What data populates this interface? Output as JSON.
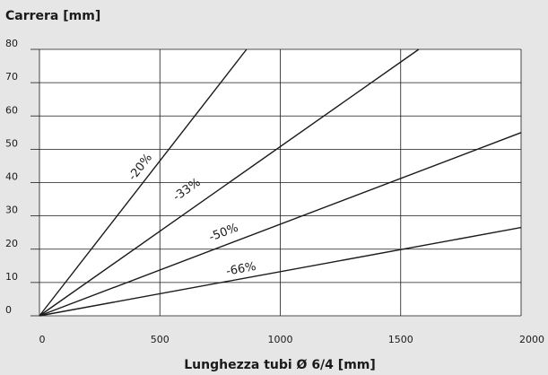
{
  "chart_data": {
    "type": "line",
    "title": "",
    "ylabel": "Carrera [mm]",
    "xlabel": "Lunghezza tubi Ø 6/4 [mm]",
    "xlim": [
      0,
      2000
    ],
    "ylim": [
      0,
      80
    ],
    "xticks": [
      "0",
      "500",
      "1000",
      "1500",
      "2000"
    ],
    "yticks": [
      "0",
      "10",
      "20",
      "30",
      "40",
      "50",
      "60",
      "70",
      "80"
    ],
    "grid": true,
    "series": [
      {
        "name": "-20%",
        "x": [
          0,
          860
        ],
        "y": [
          0,
          80
        ]
      },
      {
        "name": "-33%",
        "x": [
          0,
          1575
        ],
        "y": [
          0,
          80
        ]
      },
      {
        "name": "-50%",
        "x": [
          0,
          2000
        ],
        "y": [
          0,
          55
        ]
      },
      {
        "name": "-66%",
        "x": [
          0,
          2000
        ],
        "y": [
          0,
          26.5
        ]
      }
    ],
    "annotations": [
      {
        "text": "-20%",
        "x": 430,
        "y": 44
      },
      {
        "text": "-33%",
        "x": 620,
        "y": 37
      },
      {
        "text": "-50%",
        "x": 770,
        "y": 24
      },
      {
        "text": "-66%",
        "x": 840,
        "y": 13
      }
    ]
  }
}
